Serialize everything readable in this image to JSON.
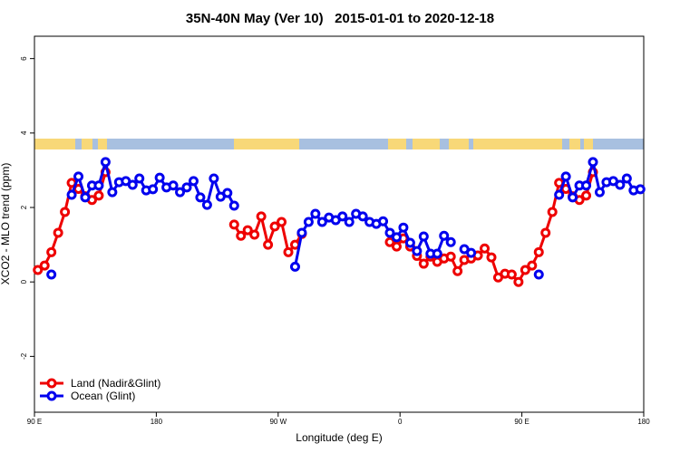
{
  "chart_data": {
    "type": "line",
    "title": "35N-40N May (Ver 10)   2015-01-01 to 2020-12-18",
    "xlabel": "Longitude (deg E)",
    "ylabel": "XCO2 - MLO trend (ppm)",
    "xlim": [
      90,
      540
    ],
    "xticks": [
      {
        "value": 90,
        "label": "90 E"
      },
      {
        "value": 180,
        "label": "180"
      },
      {
        "value": 270,
        "label": "90 W"
      },
      {
        "value": 360,
        "label": "0"
      },
      {
        "value": 450,
        "label": "90 E"
      },
      {
        "value": 540,
        "label": "180"
      }
    ],
    "ylim": [
      -3.5,
      6.6
    ],
    "yticks": [
      -2,
      0,
      2,
      4,
      6
    ],
    "legend": "bottom-left",
    "x": [
      92.5,
      97.5,
      102.5,
      107.5,
      112.5,
      117.5,
      122.5,
      127.5,
      132.5,
      137.5,
      142.5,
      147.5,
      152.5,
      157.5,
      162.5,
      167.5,
      172.5,
      177.5,
      182.5,
      187.5,
      192.5,
      197.5,
      202.5,
      207.5,
      212.5,
      217.5,
      222.5,
      227.5,
      232.5,
      237.5,
      242.5,
      247.5,
      252.5,
      257.5,
      262.5,
      267.5,
      272.5,
      277.5,
      282.5,
      287.5,
      292.5,
      297.5,
      302.5,
      307.5,
      312.5,
      317.5,
      322.5,
      327.5,
      332.5,
      337.5,
      342.5,
      347.5,
      352.5,
      357.5,
      362.5,
      367.5,
      372.5,
      377.5,
      382.5,
      387.5,
      392.5,
      397.5,
      402.5,
      407.5,
      412.5,
      417.5,
      422.5,
      427.5,
      432.5,
      437.5,
      442.5,
      447.5,
      452.5,
      457.5,
      462.5,
      467.5,
      472.5,
      477.5,
      482.5,
      487.5,
      492.5,
      497.5,
      502.5,
      507.5,
      512.5,
      517.5,
      522.5,
      527.5,
      532.5,
      537.5
    ],
    "series": [
      {
        "name": "Land (Nadir&Glint)",
        "color": "#ee0000",
        "values": [
          0.32,
          0.44,
          0.8,
          1.32,
          1.88,
          2.66,
          2.5,
          2.3,
          2.2,
          2.32,
          2.95,
          null,
          null,
          null,
          null,
          null,
          null,
          null,
          null,
          null,
          null,
          null,
          null,
          null,
          null,
          null,
          null,
          null,
          null,
          1.54,
          1.24,
          1.39,
          1.27,
          1.76,
          1.0,
          1.49,
          1.61,
          0.8,
          1.0,
          1.29,
          null,
          null,
          null,
          null,
          null,
          null,
          null,
          null,
          null,
          null,
          null,
          null,
          1.07,
          0.95,
          1.17,
          0.95,
          0.7,
          0.49,
          0.68,
          0.54,
          0.63,
          0.68,
          0.29,
          0.59,
          0.63,
          0.71,
          0.9,
          0.66,
          0.12,
          0.22,
          0.2,
          0.0,
          0.32,
          0.44,
          0.8,
          1.32,
          1.88,
          2.66,
          2.5,
          2.3,
          2.2,
          2.32,
          2.95,
          null,
          null,
          null,
          null,
          null,
          null,
          null
        ]
      },
      {
        "name": "Ocean (Glint)",
        "color": "#0000ee",
        "values": [
          null,
          null,
          0.2,
          null,
          null,
          2.34,
          2.83,
          2.27,
          2.59,
          2.59,
          3.22,
          2.41,
          2.68,
          2.71,
          2.61,
          2.78,
          2.46,
          2.49,
          2.8,
          2.54,
          2.59,
          2.41,
          2.54,
          2.71,
          2.27,
          2.07,
          2.78,
          2.29,
          2.39,
          2.05,
          null,
          null,
          null,
          null,
          null,
          null,
          null,
          null,
          0.41,
          1.32,
          1.61,
          1.83,
          1.61,
          1.73,
          1.66,
          1.76,
          1.61,
          1.83,
          1.76,
          1.61,
          1.56,
          1.63,
          1.32,
          1.2,
          1.46,
          1.05,
          0.83,
          1.22,
          0.76,
          0.76,
          1.24,
          1.07,
          null,
          0.88,
          0.78,
          null,
          null,
          null,
          null,
          null,
          null,
          null,
          null,
          null,
          0.2,
          null,
          null,
          2.34,
          2.83,
          2.27,
          2.59,
          2.59,
          3.22,
          2.41,
          2.68,
          2.71,
          2.61,
          2.78,
          2.46,
          2.49
        ]
      }
    ]
  }
}
